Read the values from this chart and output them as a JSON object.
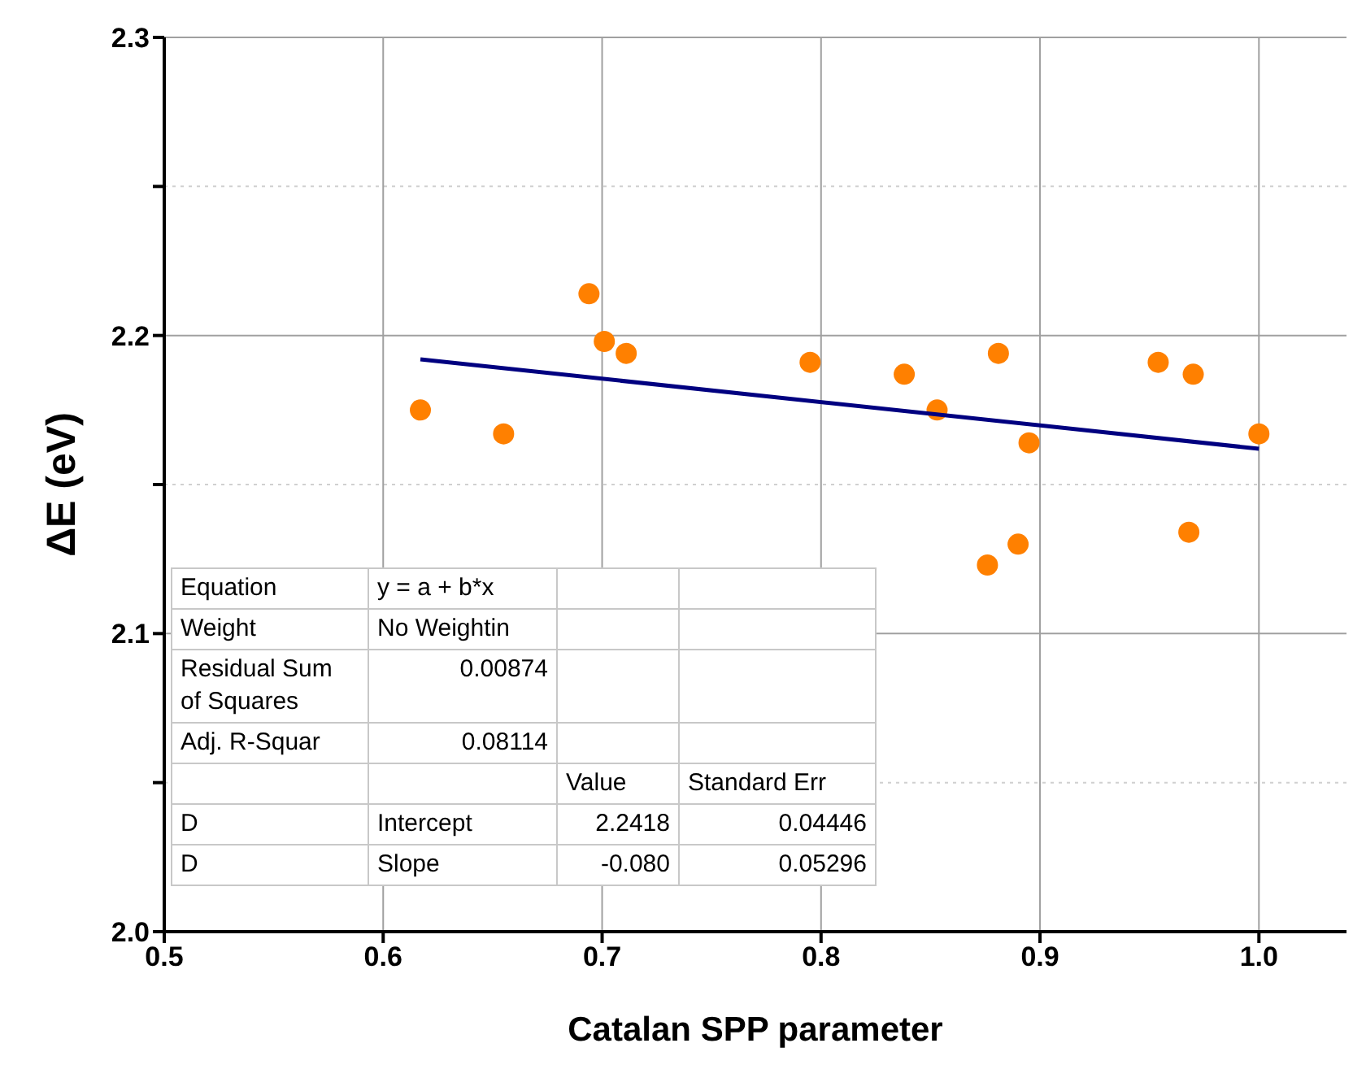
{
  "chart_data": {
    "type": "scatter",
    "xlabel": "Catalan SPP parameter",
    "ylabel": "ΔE (eV)",
    "xlim": [
      0.5,
      1.04
    ],
    "xticks": [
      0.5,
      0.6,
      0.7,
      0.8,
      0.9,
      {
        "value": 1,
        "label": "1.0"
      }
    ],
    "ylim": [
      2,
      2.3
    ],
    "yticks": [
      {
        "value": 2,
        "label": "2.0"
      },
      {
        "value": 2.05,
        "label": null
      },
      2.1,
      {
        "value": 2.15,
        "label": null
      },
      2.2,
      {
        "value": 2.25,
        "label": null
      },
      2.3
    ],
    "grid": true,
    "legend": false,
    "series": [
      {
        "type": "scatter",
        "marker": "circle",
        "color": "#ff8000",
        "x": [
          0.617,
          0.655,
          0.694,
          0.701,
          0.711,
          0.795,
          0.838,
          0.853,
          0.881,
          0.895,
          0.89,
          0.876,
          0.954,
          0.97,
          0.968,
          1.0
        ],
        "values": [
          2.175,
          2.167,
          2.214,
          2.198,
          2.194,
          2.191,
          2.187,
          2.175,
          2.194,
          2.164,
          2.13,
          2.123,
          2.191,
          2.187,
          2.134,
          2.167
        ]
      },
      {
        "type": "line",
        "marker": "none",
        "line_style": "solid",
        "color": "#000080",
        "x": [
          0.617,
          1.0
        ],
        "values": [
          2.192,
          2.162
        ]
      }
    ],
    "annotations": [
      "Equation",
      "y = a + b*x",
      "Weight",
      "No Weightin",
      "Residual Sum of Squares",
      "0.00874",
      "Adj. R-Squar",
      "0.08114",
      "Value",
      "Standard Err",
      "D",
      "Intercept",
      "2.2418",
      "0.04446",
      "D",
      "Slope",
      "-0.080",
      "0.05296"
    ]
  }
}
